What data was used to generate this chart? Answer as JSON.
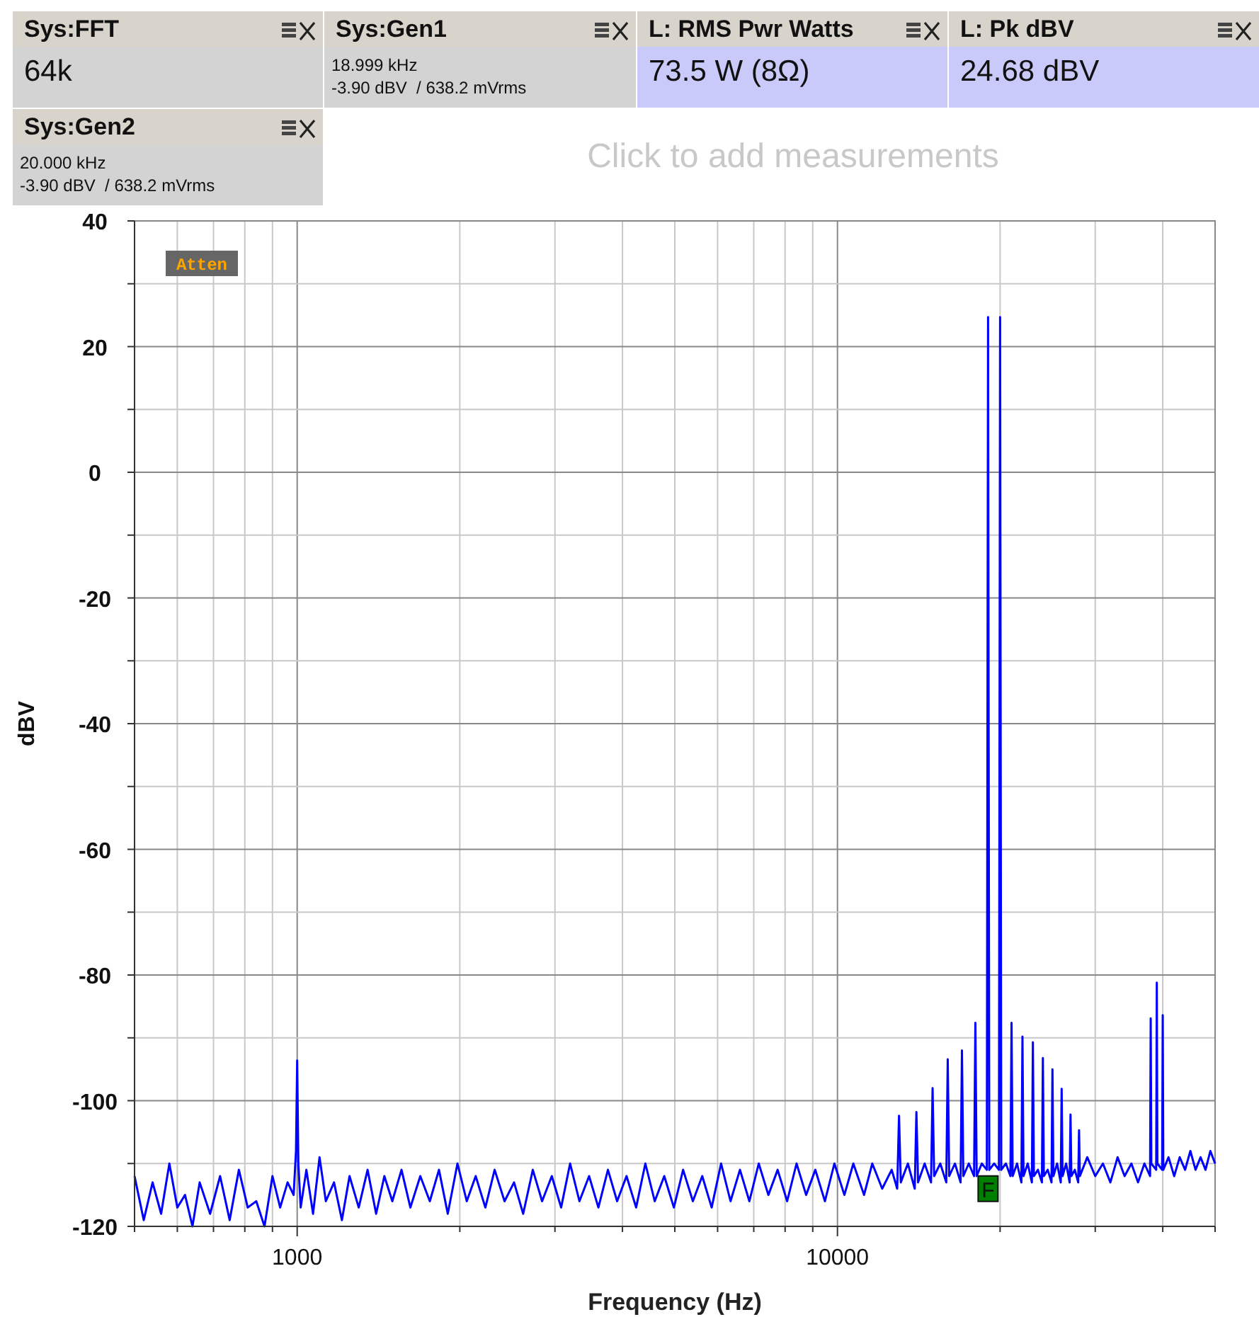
{
  "chart_data": {
    "type": "line",
    "xlabel": "Frequency (Hz)",
    "ylabel": "dBV",
    "log": "x",
    "grid": true,
    "xlim": [
      500,
      50000
    ],
    "ylim": [
      -120,
      40
    ],
    "xticks": [
      {
        "value": 500,
        "label": null
      },
      {
        "value": 600,
        "label": null
      },
      {
        "value": 700,
        "label": null
      },
      {
        "value": 800,
        "label": null
      },
      {
        "value": 900,
        "label": null
      },
      1000,
      {
        "value": 2000,
        "label": null
      },
      {
        "value": 3000,
        "label": null
      },
      {
        "value": 4000,
        "label": null
      },
      {
        "value": 5000,
        "label": null
      },
      {
        "value": 6000,
        "label": null
      },
      {
        "value": 7000,
        "label": null
      },
      {
        "value": 8000,
        "label": null
      },
      {
        "value": 9000,
        "label": null
      },
      10000,
      {
        "value": 20000,
        "label": null
      },
      {
        "value": 30000,
        "label": null
      },
      {
        "value": 40000,
        "label": null
      },
      {
        "value": 50000,
        "label": null
      }
    ],
    "yticks": [
      -120,
      {
        "value": -110,
        "label": null
      },
      -100,
      {
        "value": -90,
        "label": null
      },
      -80,
      {
        "value": -70,
        "label": null
      },
      -60,
      {
        "value": -50,
        "label": null
      },
      -40,
      {
        "value": -30,
        "label": null
      },
      -20,
      {
        "value": -10,
        "label": null
      },
      0,
      {
        "value": 10,
        "label": null
      },
      20,
      {
        "value": 30,
        "label": null
      },
      40
    ],
    "annotations": [
      "Sys:FFT",
      "64k",
      "Sys:Gen1",
      "18.999 kHz",
      "-3.90 dBV  / 638.2 mVrms",
      "L: RMS Pwr Watts",
      "73.5 W (8Ω)",
      "L: Pk dBV",
      "24.68 dBV",
      "Sys:Gen2",
      "20.000 kHz",
      "-3.90 dBV  / 638.2 mVrms",
      "Click to add measurements",
      "Atten",
      {
        "text": "F",
        "x": 19000,
        "y": -114
      }
    ],
    "series": [
      {
        "color": "#0000ff",
        "x": [
          500,
          520,
          540,
          560,
          580,
          600,
          620,
          640,
          660,
          690,
          720,
          750,
          780,
          810,
          840,
          870,
          900,
          930,
          960,
          985,
          995,
          1000,
          1005,
          1015,
          1040,
          1070,
          1100,
          1130,
          1170,
          1210,
          1250,
          1300,
          1350,
          1400,
          1450,
          1500,
          1560,
          1620,
          1690,
          1760,
          1830,
          1900,
          1980,
          2060,
          2140,
          2230,
          2320,
          2420,
          2520,
          2620,
          2730,
          2840,
          2960,
          3080,
          3200,
          3330,
          3470,
          3610,
          3760,
          3910,
          4070,
          4240,
          4410,
          4590,
          4780,
          4980,
          5180,
          5400,
          5620,
          5850,
          6090,
          6340,
          6600,
          6870,
          7150,
          7450,
          7750,
          8070,
          8400,
          8750,
          9100,
          9480,
          9870,
          10300,
          10700,
          11200,
          11600,
          12100,
          12600,
          12900,
          13000,
          13100,
          13500,
          13900,
          14000,
          14100,
          14500,
          14900,
          15000,
          15100,
          15500,
          15900,
          16000,
          16100,
          16500,
          16900,
          17000,
          17100,
          17500,
          17900,
          18000,
          18100,
          18500,
          18900,
          19000,
          19100,
          19500,
          19900,
          20000,
          20100,
          20500,
          20900,
          21000,
          21100,
          21500,
          21900,
          22000,
          22100,
          22500,
          22900,
          23000,
          23100,
          23500,
          23900,
          24000,
          24100,
          24500,
          24900,
          25000,
          25100,
          25500,
          25900,
          26000,
          26100,
          26500,
          26900,
          27000,
          27100,
          27500,
          27900,
          28000,
          28100,
          29000,
          30000,
          31000,
          32000,
          33000,
          34000,
          35000,
          36000,
          37000,
          37900,
          38000,
          38100,
          38900,
          39000,
          39100,
          39900,
          40000,
          40100,
          41000,
          42000,
          43000,
          44000,
          45000,
          46000,
          47000,
          48000,
          49000,
          50000
        ],
        "values": [
          -112,
          -119,
          -113,
          -118,
          -110,
          -117,
          -115,
          -120,
          -113,
          -118,
          -112,
          -119,
          -111,
          -117,
          -116,
          -120,
          -112,
          -117,
          -113,
          -115,
          -108,
          -93.6,
          -110,
          -117,
          -111,
          -118,
          -109,
          -116,
          -113,
          -119,
          -112,
          -117,
          -111,
          -118,
          -112,
          -116,
          -111,
          -117,
          -112,
          -116,
          -111,
          -118,
          -110,
          -116,
          -112,
          -117,
          -111,
          -116,
          -113,
          -118,
          -111,
          -116,
          -112,
          -117,
          -110,
          -116,
          -112,
          -117,
          -111,
          -116,
          -112,
          -117,
          -110,
          -116,
          -112,
          -117,
          -111,
          -116,
          -112,
          -117,
          -110,
          -116,
          -111,
          -116,
          -110,
          -115,
          -111,
          -116,
          -110,
          -115,
          -111,
          -116,
          -110,
          -115,
          -110,
          -115,
          -110,
          -114,
          -111,
          -114,
          -102.4,
          -113,
          -110,
          -114,
          -101.8,
          -113,
          -110,
          -113,
          -98,
          -112,
          -110,
          -113,
          -93.4,
          -112,
          -110,
          -113,
          -92,
          -112,
          -110,
          -112,
          -87.6,
          -112,
          -110,
          -111,
          24.7,
          -111,
          -110,
          -111,
          24.7,
          -111,
          -110,
          -112,
          -87.6,
          -112,
          -110,
          -113,
          -89.8,
          -112,
          -110,
          -113,
          -90.7,
          -112,
          -111,
          -113,
          -93.2,
          -112,
          -111,
          -113,
          -95,
          -112,
          -110,
          -113,
          -98.1,
          -112,
          -110,
          -113,
          -102.2,
          -112,
          -111,
          -113,
          -104.7,
          -112,
          -109,
          -112,
          -110,
          -113,
          -109,
          -112,
          -110,
          -113,
          -110,
          -112,
          -86.9,
          -110,
          -111,
          -81.2,
          -110,
          -111,
          -86.4,
          -111,
          -109,
          -112,
          -109,
          -111,
          -108,
          -111,
          -109,
          -111,
          -108,
          -110
        ]
      }
    ]
  }
}
